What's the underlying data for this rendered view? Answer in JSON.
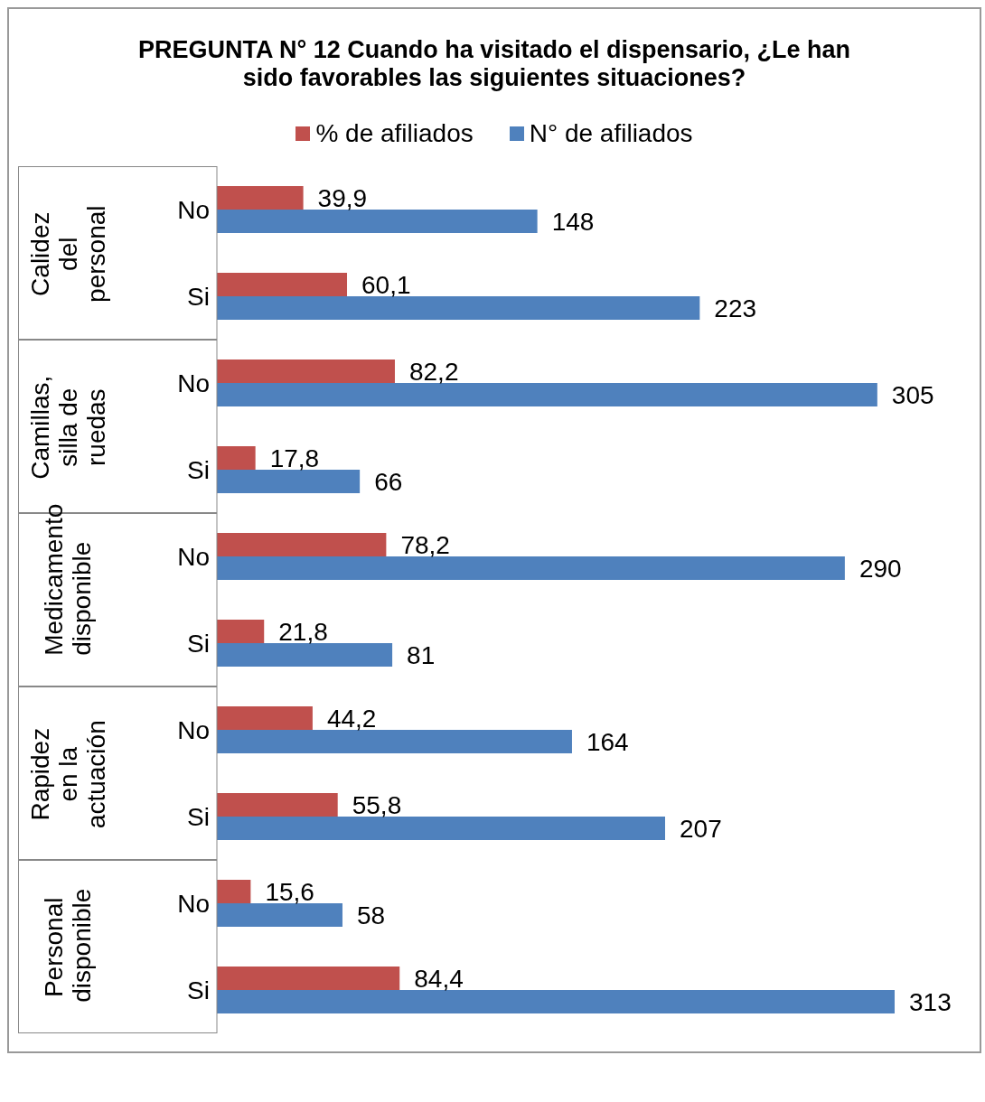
{
  "chart_data": {
    "type": "bar",
    "orientation": "horizontal",
    "title": "PREGUNTA N° 12 Cuando ha visitado el dispensario, ¿Le han sido favorables las siguientes situaciones?",
    "categories": [
      "No",
      "Si",
      "No",
      "Si",
      "No",
      "Si",
      "No",
      "Si",
      "No",
      "Si"
    ],
    "annotations": [
      "Calidez del personal",
      "Camillas, silla de ruedas",
      "Medicamento disponible",
      "Rapidez en la actuación",
      "Personal disponible"
    ],
    "series": [
      {
        "name": "% de afiliados",
        "color": "#c0504d",
        "values": [
          39.9,
          60.1,
          82.2,
          17.8,
          78.2,
          21.8,
          44.2,
          55.8,
          15.6,
          84.4
        ],
        "value_labels": [
          "39,9",
          "60,1",
          "82,2",
          "17,8",
          "78,2",
          "21,8",
          "44,2",
          "55,8",
          "15,6",
          "84,4"
        ]
      },
      {
        "name": "N° de afiliados",
        "color": "#4f81bd",
        "values": [
          148,
          223,
          305,
          66,
          290,
          81,
          164,
          207,
          58,
          313
        ],
        "value_labels": [
          "148",
          "223",
          "305",
          "66",
          "290",
          "81",
          "164",
          "207",
          "58",
          "313"
        ]
      }
    ],
    "legend": "top"
  }
}
